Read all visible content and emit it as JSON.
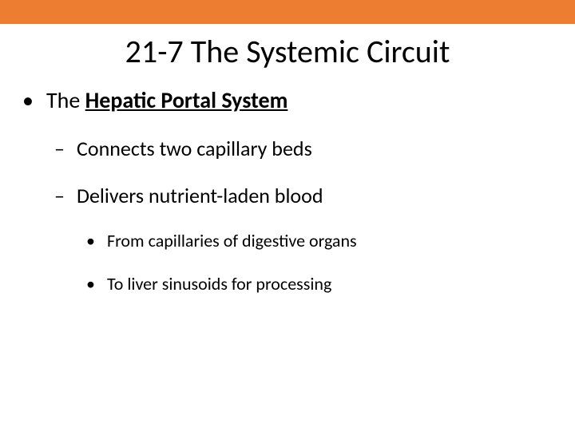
{
  "accent_color": "#ed7d31",
  "title": "21-7 The Systemic Circuit",
  "bullets": {
    "lvl1": {
      "prefix": "The ",
      "bold_underlined": "Hepatic Portal System"
    },
    "lvl2a": "Connects two capillary beds",
    "lvl2b": "Delivers nutrient-laden blood",
    "lvl3a": "From capillaries of digestive organs",
    "lvl3b": "To liver sinusoids for processing"
  },
  "glyphs": {
    "disc": "•",
    "dash": "–"
  }
}
